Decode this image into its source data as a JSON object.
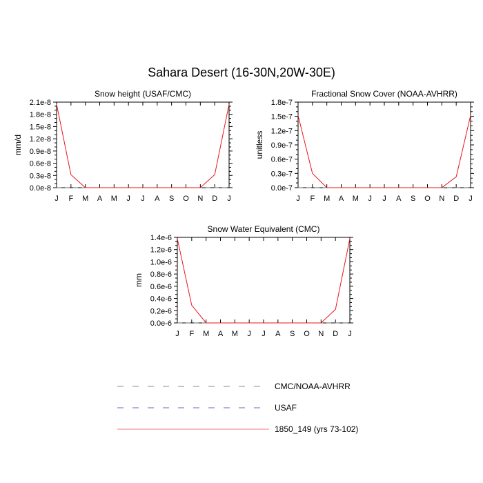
{
  "title": "Sahara Desert (16-30N,20W-30E)",
  "chart_data": [
    {
      "type": "line",
      "title": "Snow height (USAF/CMC)",
      "ylabel": "mm/d",
      "categories": [
        "J",
        "F",
        "M",
        "A",
        "M",
        "J",
        "J",
        "A",
        "S",
        "O",
        "N",
        "D",
        "J"
      ],
      "ylim": [
        0,
        2.1e-08
      ],
      "yticks": [
        "0.0e-8",
        "0.3e-8",
        "0.6e-8",
        "0.9e-8",
        "1.2e-8",
        "1.5e-8",
        "1.8e-8",
        "2.1e-8"
      ],
      "ytick_values": [
        0,
        3e-09,
        6e-09,
        9e-09,
        1.2e-08,
        1.5e-08,
        1.8e-08,
        2.1e-08
      ],
      "series": [
        {
          "name": "1850_149 (yrs 73-102)",
          "color": "#e8141a",
          "dash": "solid",
          "values": [
            2.05e-08,
            3.2e-09,
            0,
            0,
            0,
            0,
            0,
            0,
            0,
            0,
            0,
            3.2e-09,
            2.05e-08
          ]
        },
        {
          "name": "USAF",
          "color": "#2b2bbf",
          "dash": "dashed",
          "values": [
            0,
            0,
            0,
            0,
            0,
            0,
            0,
            0,
            0,
            0,
            0,
            0,
            0
          ]
        },
        {
          "name": "CMC/NOAA-AVHRR",
          "color": "#666666",
          "dash": "dashed",
          "values": [
            0,
            0,
            0,
            0,
            0,
            0,
            0,
            0,
            0,
            0,
            0,
            0,
            0
          ]
        }
      ]
    },
    {
      "type": "line",
      "title": "Fractional Snow Cover (NOAA-AVHRR)",
      "ylabel": "unitless",
      "categories": [
        "J",
        "F",
        "M",
        "A",
        "M",
        "J",
        "J",
        "A",
        "S",
        "O",
        "N",
        "D",
        "J"
      ],
      "ylim": [
        0,
        1.8e-07
      ],
      "yticks": [
        "0.0e-7",
        "0.3e-7",
        "0.6e-7",
        "0.9e-7",
        "1.2e-7",
        "1.5e-7",
        "1.8e-7"
      ],
      "ytick_values": [
        0,
        3e-08,
        6e-08,
        9e-08,
        1.2e-07,
        1.5e-07,
        1.8e-07
      ],
      "series": [
        {
          "name": "1850_149 (yrs 73-102)",
          "color": "#e8141a",
          "dash": "solid",
          "values": [
            1.52e-07,
            3e-08,
            0,
            0,
            0,
            0,
            0,
            0,
            0,
            0,
            0,
            2.3e-08,
            1.52e-07
          ]
        },
        {
          "name": "CMC/NOAA-AVHRR",
          "color": "#666666",
          "dash": "dashed",
          "values": [
            0,
            0,
            0,
            0,
            0,
            0,
            0,
            0,
            0,
            0,
            0,
            0,
            0
          ]
        }
      ]
    },
    {
      "type": "line",
      "title": "Snow Water Equivalent (CMC)",
      "ylabel": "mm",
      "categories": [
        "J",
        "F",
        "M",
        "A",
        "M",
        "J",
        "J",
        "A",
        "S",
        "O",
        "N",
        "D",
        "J"
      ],
      "ylim": [
        0,
        1.4e-06
      ],
      "yticks": [
        "0.0e-6",
        "0.2e-6",
        "0.4e-6",
        "0.6e-6",
        "0.8e-6",
        "1.0e-6",
        "1.2e-6",
        "1.4e-6"
      ],
      "ytick_values": [
        0,
        2e-07,
        4e-07,
        6e-07,
        8e-07,
        1e-06,
        1.2e-06,
        1.4e-06
      ],
      "series": [
        {
          "name": "1850_149 (yrs 73-102)",
          "color": "#e8141a",
          "dash": "solid",
          "values": [
            1.38e-06,
            2.9e-07,
            0,
            0,
            0,
            0,
            0,
            0,
            0,
            0,
            0,
            2.2e-07,
            1.38e-06
          ]
        },
        {
          "name": "CMC/NOAA-AVHRR",
          "color": "#666666",
          "dash": "dashed",
          "values": [
            0,
            0,
            0,
            0,
            0,
            0,
            0,
            0,
            0,
            0,
            0,
            0,
            0
          ]
        }
      ]
    }
  ],
  "legend": [
    {
      "label": "CMC/NOAA-AVHRR",
      "color": "#8a8a9a",
      "dash": "dashed"
    },
    {
      "label": "USAF",
      "color": "#6a6aa8",
      "dash": "dashed"
    },
    {
      "label": "1850_149 (yrs 73-102)",
      "color": "#f07a7a",
      "dash": "solid"
    }
  ]
}
